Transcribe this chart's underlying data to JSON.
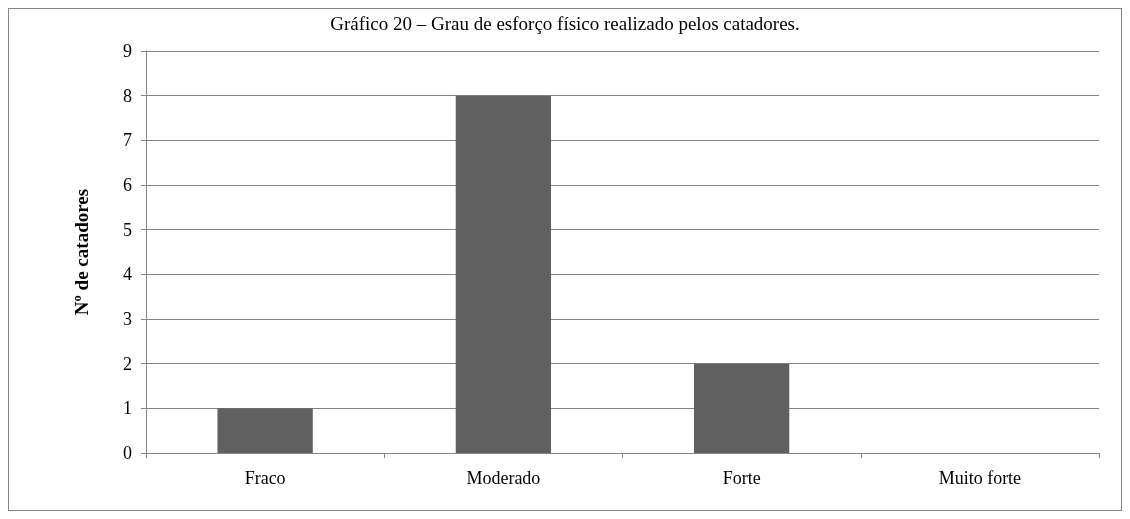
{
  "chart_data": {
    "type": "bar",
    "title": "Gráfico 20 – Grau de esforço físico realizado pelos catadores.",
    "ylabel": "Nº de catadores",
    "categories": [
      "Fraco",
      "Moderado",
      "Forte",
      "Muito forte"
    ],
    "values": [
      1,
      8,
      2,
      0
    ],
    "color": "#606060",
    "ylim": [
      0,
      9
    ],
    "yticks": [
      0,
      1,
      2,
      3,
      4,
      5,
      6,
      7,
      8,
      9
    ],
    "grid": "y"
  }
}
